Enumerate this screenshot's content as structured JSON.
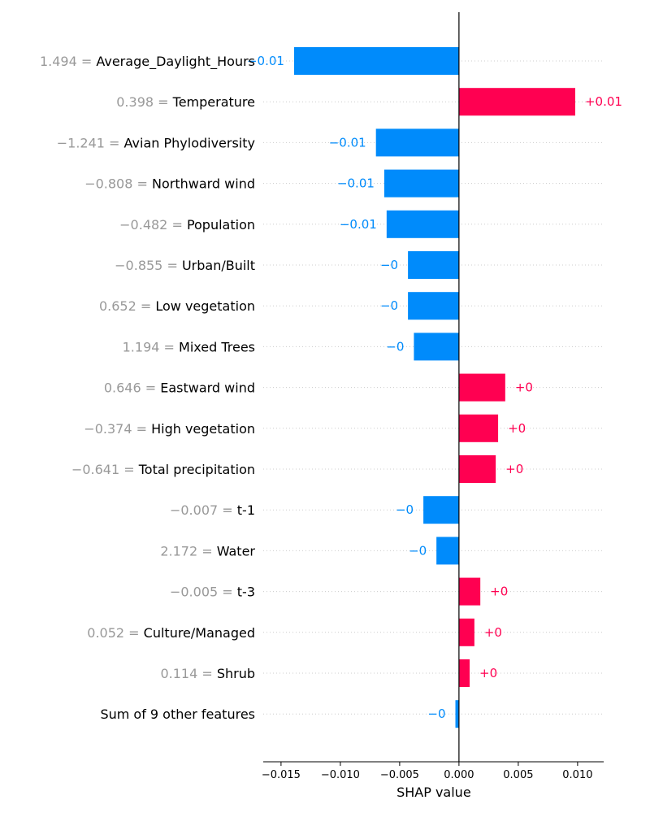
{
  "colors": {
    "positive": "#ff0051",
    "negative": "#008bfb",
    "zero_line": "#000000",
    "feature_value": "#999999"
  },
  "chart_data": {
    "type": "bar",
    "orientation": "horizontal",
    "xlabel": "SHAP value",
    "xlim": [
      -0.0165,
      0.0122
    ],
    "x_ticks": [
      -0.015,
      -0.01,
      -0.005,
      0.0,
      0.005,
      0.01
    ],
    "x_tick_labels": [
      "−0.015",
      "−0.010",
      "−0.005",
      "0.000",
      "0.005",
      "0.010"
    ],
    "grid": "horizontal dotted",
    "features": [
      {
        "value_text": "1.494 = ",
        "name": "Average_Daylight_Hours",
        "shap": -0.0139,
        "label": "−0.01"
      },
      {
        "value_text": "0.398 = ",
        "name": "Temperature",
        "shap": 0.0098,
        "label": "+0.01"
      },
      {
        "value_text": "−1.241 = ",
        "name": "Avian Phylodiversity",
        "shap": -0.007,
        "label": "−0.01"
      },
      {
        "value_text": "−0.808 = ",
        "name": "Northward wind",
        "shap": -0.0063,
        "label": "−0.01"
      },
      {
        "value_text": "−0.482 = ",
        "name": "Population",
        "shap": -0.0061,
        "label": "−0.01"
      },
      {
        "value_text": "−0.855 = ",
        "name": "Urban/Built",
        "shap": -0.0043,
        "label": "−0"
      },
      {
        "value_text": "0.652 = ",
        "name": "Low vegetation",
        "shap": -0.0043,
        "label": "−0"
      },
      {
        "value_text": "1.194 = ",
        "name": "Mixed Trees",
        "shap": -0.0038,
        "label": "−0"
      },
      {
        "value_text": "0.646 = ",
        "name": "Eastward wind",
        "shap": 0.0039,
        "label": "+0"
      },
      {
        "value_text": "−0.374 = ",
        "name": "High vegetation",
        "shap": 0.0033,
        "label": "+0"
      },
      {
        "value_text": "−0.641 = ",
        "name": "Total precipitation",
        "shap": 0.0031,
        "label": "+0"
      },
      {
        "value_text": "−0.007 = ",
        "name": "t-1",
        "shap": -0.003,
        "label": "−0"
      },
      {
        "value_text": "2.172 = ",
        "name": "Water",
        "shap": -0.0019,
        "label": "−0"
      },
      {
        "value_text": "−0.005 = ",
        "name": "t-3",
        "shap": 0.0018,
        "label": "+0"
      },
      {
        "value_text": "0.052 = ",
        "name": "Culture/Managed",
        "shap": 0.0013,
        "label": "+0"
      },
      {
        "value_text": "0.114 = ",
        "name": "Shrub",
        "shap": 0.0009,
        "label": "+0"
      },
      {
        "value_text": "",
        "name": "Sum of 9 other features",
        "shap": -0.0003,
        "label": "−0"
      }
    ]
  }
}
